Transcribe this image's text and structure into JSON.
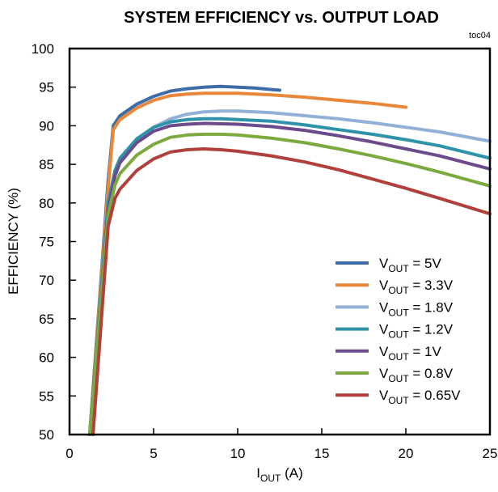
{
  "chart_data": {
    "type": "line",
    "title": "SYSTEM EFFICIENCY vs. OUTPUT LOAD",
    "tag": "toc04",
    "xlabel": {
      "main": "I",
      "sub": "OUT",
      "unit": " (A)"
    },
    "ylabel": "EFFICIENCY (%)",
    "xlim": [
      0,
      25
    ],
    "ylim": [
      50,
      100
    ],
    "xticks": [
      0,
      5,
      10,
      15,
      20,
      25
    ],
    "yticks": [
      50,
      55,
      60,
      65,
      70,
      75,
      80,
      85,
      90,
      95,
      100
    ],
    "grid": false,
    "legend_position": "bottom-right",
    "series": [
      {
        "name": "V_OUT = 5V",
        "legend": {
          "main": "V",
          "sub": "OUT",
          "rest": " = 5V"
        },
        "color": "#3F6CA9",
        "points": [
          [
            1.2,
            50
          ],
          [
            2.3,
            83
          ],
          [
            2.6,
            90
          ],
          [
            3,
            91.3
          ],
          [
            4,
            92.8
          ],
          [
            5,
            93.8
          ],
          [
            6,
            94.5
          ],
          [
            7,
            94.8
          ],
          [
            8,
            95.0
          ],
          [
            9,
            95.1
          ],
          [
            10,
            95.0
          ],
          [
            11,
            94.9
          ],
          [
            12,
            94.7
          ],
          [
            12.5,
            94.6
          ]
        ]
      },
      {
        "name": "V_OUT = 3.3V",
        "legend": {
          "main": "V",
          "sub": "OUT",
          "rest": " = 3.3V"
        },
        "color": "#E9873A",
        "points": [
          [
            1.2,
            50
          ],
          [
            2.3,
            82
          ],
          [
            2.6,
            89.5
          ],
          [
            3,
            90.8
          ],
          [
            4,
            92.3
          ],
          [
            5,
            93.3
          ],
          [
            6,
            93.9
          ],
          [
            7,
            94.1
          ],
          [
            8,
            94.2
          ],
          [
            10,
            94.2
          ],
          [
            12,
            94.0
          ],
          [
            14,
            93.7
          ],
          [
            16,
            93.3
          ],
          [
            18,
            92.9
          ],
          [
            20,
            92.4
          ]
        ]
      },
      {
        "name": "V_OUT = 1.8V",
        "legend": {
          "main": "V",
          "sub": "OUT",
          "rest": " = 1.8V"
        },
        "color": "#92B0D8",
        "points": [
          [
            1.2,
            50
          ],
          [
            2.3,
            80
          ],
          [
            2.7,
            84
          ],
          [
            3,
            85.6
          ],
          [
            4,
            88.2
          ],
          [
            5,
            89.8
          ],
          [
            6,
            90.9
          ],
          [
            7,
            91.5
          ],
          [
            8,
            91.8
          ],
          [
            9,
            91.9
          ],
          [
            10,
            91.9
          ],
          [
            12,
            91.7
          ],
          [
            14,
            91.3
          ],
          [
            16,
            90.9
          ],
          [
            18,
            90.4
          ],
          [
            20,
            89.8
          ],
          [
            22,
            89.2
          ],
          [
            25,
            88.0
          ]
        ]
      },
      {
        "name": "V_OUT = 1.2V",
        "legend": {
          "main": "V",
          "sub": "OUT",
          "rest": " = 1.2V"
        },
        "color": "#2E93A8",
        "points": [
          [
            1.2,
            50
          ],
          [
            2.3,
            80
          ],
          [
            2.7,
            84.2
          ],
          [
            3,
            85.8
          ],
          [
            4,
            88.3
          ],
          [
            5,
            89.8
          ],
          [
            6,
            90.5
          ],
          [
            7,
            90.8
          ],
          [
            8,
            90.9
          ],
          [
            9,
            90.9
          ],
          [
            10,
            90.8
          ],
          [
            12,
            90.6
          ],
          [
            14,
            90.1
          ],
          [
            16,
            89.5
          ],
          [
            18,
            88.9
          ],
          [
            20,
            88.2
          ],
          [
            22,
            87.4
          ],
          [
            25,
            85.8
          ]
        ]
      },
      {
        "name": "V_OUT = 1V",
        "legend": {
          "main": "V",
          "sub": "OUT",
          "rest": " = 1V"
        },
        "color": "#6C4B8D",
        "points": [
          [
            1.2,
            50
          ],
          [
            2.3,
            79
          ],
          [
            2.7,
            83.5
          ],
          [
            3,
            85.2
          ],
          [
            4,
            87.8
          ],
          [
            5,
            89.3
          ],
          [
            6,
            90.0
          ],
          [
            7,
            90.2
          ],
          [
            8,
            90.3
          ],
          [
            10,
            90.2
          ],
          [
            12,
            89.9
          ],
          [
            14,
            89.4
          ],
          [
            16,
            88.7
          ],
          [
            18,
            87.9
          ],
          [
            20,
            87.0
          ],
          [
            22,
            86.1
          ],
          [
            25,
            84.4
          ]
        ]
      },
      {
        "name": "V_OUT = 0.8V",
        "legend": {
          "main": "V",
          "sub": "OUT",
          "rest": " = 0.8V"
        },
        "color": "#7CAA3E",
        "points": [
          [
            1.2,
            50
          ],
          [
            2.3,
            78.5
          ],
          [
            2.7,
            82.3
          ],
          [
            3,
            83.8
          ],
          [
            4,
            86.2
          ],
          [
            5,
            87.6
          ],
          [
            6,
            88.5
          ],
          [
            7,
            88.8
          ],
          [
            8,
            88.9
          ],
          [
            9,
            88.9
          ],
          [
            10,
            88.8
          ],
          [
            12,
            88.4
          ],
          [
            14,
            87.8
          ],
          [
            16,
            87.0
          ],
          [
            18,
            86.1
          ],
          [
            20,
            85.1
          ],
          [
            22,
            84.0
          ],
          [
            25,
            82.2
          ]
        ]
      },
      {
        "name": "V_OUT = 0.65V",
        "legend": {
          "main": "V",
          "sub": "OUT",
          "rest": " = 0.65V"
        },
        "color": "#B0403C",
        "points": [
          [
            1.4,
            50
          ],
          [
            2.3,
            77
          ],
          [
            2.7,
            80.6
          ],
          [
            3,
            81.8
          ],
          [
            4,
            84.2
          ],
          [
            5,
            85.7
          ],
          [
            6,
            86.6
          ],
          [
            7,
            86.9
          ],
          [
            8,
            87.0
          ],
          [
            9,
            86.9
          ],
          [
            10,
            86.7
          ],
          [
            12,
            86.1
          ],
          [
            14,
            85.3
          ],
          [
            16,
            84.3
          ],
          [
            18,
            83.1
          ],
          [
            20,
            81.9
          ],
          [
            22,
            80.6
          ],
          [
            25,
            78.6
          ]
        ]
      }
    ]
  }
}
